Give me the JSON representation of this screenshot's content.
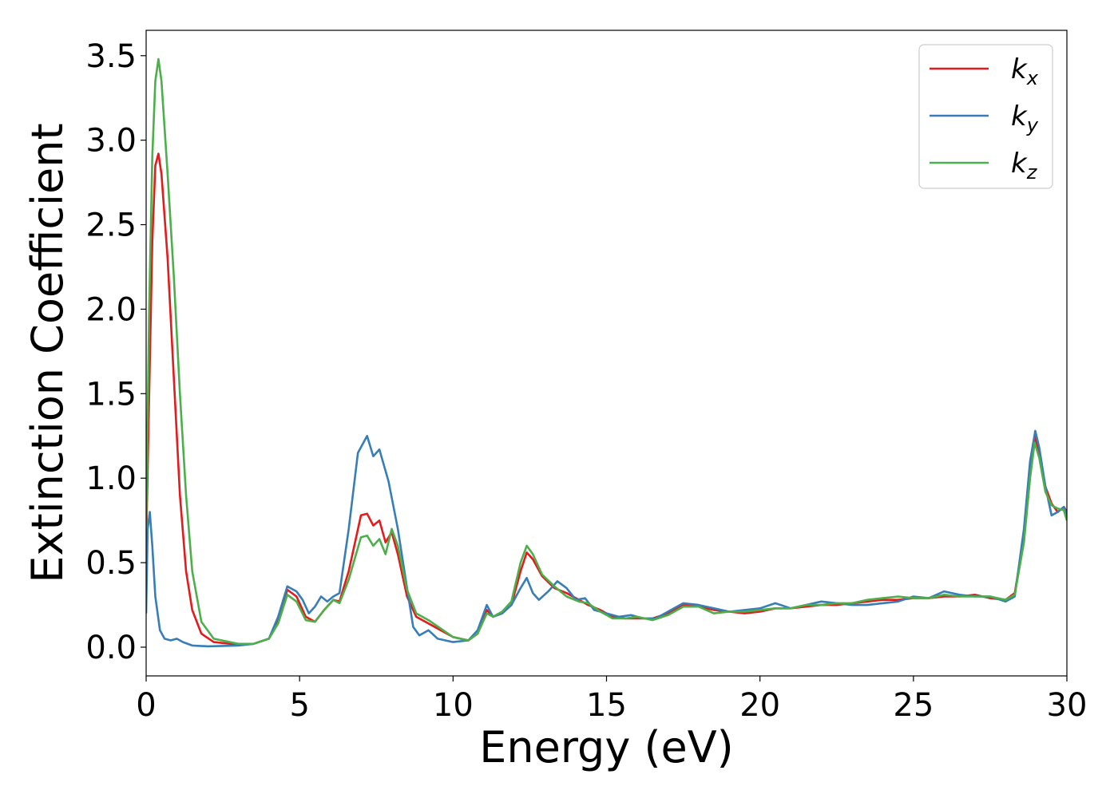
{
  "chart_data": {
    "type": "line",
    "xlabel": "Energy (eV)",
    "ylabel": "Extinction Coefficient",
    "xlim": [
      0,
      30
    ],
    "ylim": [
      -0.17,
      3.65
    ],
    "x_ticks": [
      0,
      5,
      10,
      15,
      20,
      25,
      30
    ],
    "x_tick_labels": [
      "0",
      "5",
      "10",
      "15",
      "20",
      "25",
      "30"
    ],
    "y_ticks": [
      0.0,
      0.5,
      1.0,
      1.5,
      2.0,
      2.5,
      3.0,
      3.5
    ],
    "y_tick_labels": [
      "0.0",
      "0.5",
      "1.0",
      "1.5",
      "2.0",
      "2.5",
      "3.0",
      "3.5"
    ],
    "grid": false,
    "legend_position": "top-right",
    "series": [
      {
        "name": "k_x",
        "label_base": "k",
        "label_sub": "x",
        "color": "#e41a1c",
        "points": [
          [
            0,
            0.6
          ],
          [
            0.1,
            1.5
          ],
          [
            0.2,
            2.4
          ],
          [
            0.3,
            2.85
          ],
          [
            0.4,
            2.92
          ],
          [
            0.5,
            2.8
          ],
          [
            0.7,
            2.3
          ],
          [
            0.9,
            1.6
          ],
          [
            1.1,
            0.9
          ],
          [
            1.3,
            0.45
          ],
          [
            1.5,
            0.22
          ],
          [
            1.8,
            0.08
          ],
          [
            2.2,
            0.03
          ],
          [
            3,
            0.015
          ],
          [
            3.5,
            0.02
          ],
          [
            4,
            0.05
          ],
          [
            4.3,
            0.15
          ],
          [
            4.6,
            0.34
          ],
          [
            4.9,
            0.3
          ],
          [
            5.2,
            0.18
          ],
          [
            5.5,
            0.15
          ],
          [
            5.8,
            0.22
          ],
          [
            6.1,
            0.28
          ],
          [
            6.3,
            0.27
          ],
          [
            6.6,
            0.45
          ],
          [
            7.0,
            0.78
          ],
          [
            7.2,
            0.79
          ],
          [
            7.4,
            0.72
          ],
          [
            7.6,
            0.75
          ],
          [
            7.8,
            0.62
          ],
          [
            8.0,
            0.68
          ],
          [
            8.2,
            0.55
          ],
          [
            8.5,
            0.3
          ],
          [
            8.8,
            0.18
          ],
          [
            9.2,
            0.14
          ],
          [
            9.6,
            0.1
          ],
          [
            10,
            0.06
          ],
          [
            10.5,
            0.04
          ],
          [
            10.8,
            0.08
          ],
          [
            11.1,
            0.22
          ],
          [
            11.3,
            0.18
          ],
          [
            11.6,
            0.2
          ],
          [
            11.9,
            0.25
          ],
          [
            12.2,
            0.45
          ],
          [
            12.4,
            0.56
          ],
          [
            12.6,
            0.52
          ],
          [
            12.9,
            0.42
          ],
          [
            13.3,
            0.35
          ],
          [
            13.7,
            0.32
          ],
          [
            14.1,
            0.28
          ],
          [
            14.4,
            0.25
          ],
          [
            14.8,
            0.22
          ],
          [
            15.2,
            0.18
          ],
          [
            15.6,
            0.17
          ],
          [
            16.0,
            0.17
          ],
          [
            16.5,
            0.17
          ],
          [
            17.0,
            0.2
          ],
          [
            17.5,
            0.25
          ],
          [
            18,
            0.24
          ],
          [
            18.5,
            0.22
          ],
          [
            19,
            0.21
          ],
          [
            19.5,
            0.2
          ],
          [
            20,
            0.21
          ],
          [
            20.5,
            0.23
          ],
          [
            21,
            0.23
          ],
          [
            21.5,
            0.24
          ],
          [
            22,
            0.25
          ],
          [
            22.5,
            0.25
          ],
          [
            23,
            0.26
          ],
          [
            23.5,
            0.27
          ],
          [
            24,
            0.28
          ],
          [
            24.5,
            0.28
          ],
          [
            25,
            0.29
          ],
          [
            25.5,
            0.29
          ],
          [
            26,
            0.3
          ],
          [
            26.5,
            0.3
          ],
          [
            27,
            0.31
          ],
          [
            27.5,
            0.29
          ],
          [
            28,
            0.28
          ],
          [
            28.3,
            0.32
          ],
          [
            28.6,
            0.65
          ],
          [
            28.8,
            1.05
          ],
          [
            28.95,
            1.25
          ],
          [
            29.1,
            1.15
          ],
          [
            29.3,
            0.95
          ],
          [
            29.5,
            0.85
          ],
          [
            29.7,
            0.8
          ],
          [
            29.9,
            0.83
          ],
          [
            30,
            0.8
          ]
        ]
      },
      {
        "name": "k_y",
        "label_base": "k",
        "label_sub": "y",
        "color": "#377eb8",
        "points": [
          [
            0,
            0.2
          ],
          [
            0.05,
            0.7
          ],
          [
            0.12,
            0.8
          ],
          [
            0.2,
            0.6
          ],
          [
            0.3,
            0.3
          ],
          [
            0.45,
            0.1
          ],
          [
            0.6,
            0.05
          ],
          [
            0.8,
            0.04
          ],
          [
            1.0,
            0.05
          ],
          [
            1.2,
            0.03
          ],
          [
            1.5,
            0.01
          ],
          [
            2,
            0.005
          ],
          [
            3,
            0.01
          ],
          [
            3.5,
            0.02
          ],
          [
            4,
            0.05
          ],
          [
            4.3,
            0.18
          ],
          [
            4.6,
            0.36
          ],
          [
            4.9,
            0.33
          ],
          [
            5.1,
            0.28
          ],
          [
            5.3,
            0.2
          ],
          [
            5.5,
            0.24
          ],
          [
            5.7,
            0.3
          ],
          [
            5.9,
            0.27
          ],
          [
            6.1,
            0.3
          ],
          [
            6.3,
            0.32
          ],
          [
            6.6,
            0.7
          ],
          [
            6.9,
            1.15
          ],
          [
            7.2,
            1.25
          ],
          [
            7.4,
            1.13
          ],
          [
            7.6,
            1.17
          ],
          [
            7.9,
            0.98
          ],
          [
            8.2,
            0.7
          ],
          [
            8.5,
            0.35
          ],
          [
            8.7,
            0.12
          ],
          [
            8.9,
            0.07
          ],
          [
            9.2,
            0.1
          ],
          [
            9.5,
            0.05
          ],
          [
            10,
            0.03
          ],
          [
            10.5,
            0.04
          ],
          [
            10.8,
            0.1
          ],
          [
            11.1,
            0.25
          ],
          [
            11.3,
            0.18
          ],
          [
            11.6,
            0.2
          ],
          [
            11.9,
            0.25
          ],
          [
            12.2,
            0.35
          ],
          [
            12.4,
            0.41
          ],
          [
            12.6,
            0.32
          ],
          [
            12.8,
            0.28
          ],
          [
            13.1,
            0.33
          ],
          [
            13.4,
            0.39
          ],
          [
            13.7,
            0.35
          ],
          [
            14.0,
            0.28
          ],
          [
            14.3,
            0.29
          ],
          [
            14.6,
            0.22
          ],
          [
            15.0,
            0.2
          ],
          [
            15.4,
            0.18
          ],
          [
            15.8,
            0.19
          ],
          [
            16.2,
            0.17
          ],
          [
            16.6,
            0.17
          ],
          [
            17.0,
            0.21
          ],
          [
            17.5,
            0.26
          ],
          [
            18,
            0.25
          ],
          [
            18.5,
            0.23
          ],
          [
            19,
            0.21
          ],
          [
            19.5,
            0.22
          ],
          [
            20,
            0.23
          ],
          [
            20.5,
            0.26
          ],
          [
            21,
            0.23
          ],
          [
            21.5,
            0.25
          ],
          [
            22,
            0.27
          ],
          [
            22.5,
            0.26
          ],
          [
            23,
            0.25
          ],
          [
            23.5,
            0.25
          ],
          [
            24,
            0.26
          ],
          [
            24.5,
            0.27
          ],
          [
            25,
            0.3
          ],
          [
            25.5,
            0.29
          ],
          [
            26,
            0.33
          ],
          [
            26.5,
            0.31
          ],
          [
            27,
            0.3
          ],
          [
            27.5,
            0.3
          ],
          [
            28,
            0.27
          ],
          [
            28.3,
            0.3
          ],
          [
            28.6,
            0.7
          ],
          [
            28.8,
            1.1
          ],
          [
            28.97,
            1.28
          ],
          [
            29.1,
            1.18
          ],
          [
            29.3,
            0.95
          ],
          [
            29.5,
            0.78
          ],
          [
            29.7,
            0.8
          ],
          [
            29.9,
            0.83
          ],
          [
            30,
            0.78
          ]
        ]
      },
      {
        "name": "k_z",
        "label_base": "k",
        "label_sub": "z",
        "color": "#4daf4a",
        "points": [
          [
            0,
            0.7
          ],
          [
            0.1,
            2.0
          ],
          [
            0.2,
            2.9
          ],
          [
            0.3,
            3.35
          ],
          [
            0.4,
            3.48
          ],
          [
            0.5,
            3.35
          ],
          [
            0.7,
            2.8
          ],
          [
            0.9,
            2.2
          ],
          [
            1.1,
            1.5
          ],
          [
            1.3,
            0.9
          ],
          [
            1.5,
            0.45
          ],
          [
            1.8,
            0.15
          ],
          [
            2.2,
            0.05
          ],
          [
            3,
            0.02
          ],
          [
            3.5,
            0.02
          ],
          [
            4,
            0.05
          ],
          [
            4.3,
            0.14
          ],
          [
            4.6,
            0.31
          ],
          [
            4.9,
            0.27
          ],
          [
            5.2,
            0.16
          ],
          [
            5.5,
            0.15
          ],
          [
            5.8,
            0.22
          ],
          [
            6.1,
            0.28
          ],
          [
            6.3,
            0.26
          ],
          [
            6.6,
            0.4
          ],
          [
            7.0,
            0.65
          ],
          [
            7.2,
            0.66
          ],
          [
            7.4,
            0.6
          ],
          [
            7.6,
            0.64
          ],
          [
            7.8,
            0.55
          ],
          [
            8.0,
            0.7
          ],
          [
            8.2,
            0.6
          ],
          [
            8.5,
            0.34
          ],
          [
            8.8,
            0.2
          ],
          [
            9.2,
            0.16
          ],
          [
            9.6,
            0.11
          ],
          [
            10,
            0.06
          ],
          [
            10.5,
            0.04
          ],
          [
            10.8,
            0.08
          ],
          [
            11.1,
            0.2
          ],
          [
            11.3,
            0.18
          ],
          [
            11.6,
            0.21
          ],
          [
            11.9,
            0.27
          ],
          [
            12.2,
            0.5
          ],
          [
            12.4,
            0.6
          ],
          [
            12.6,
            0.55
          ],
          [
            12.9,
            0.43
          ],
          [
            13.3,
            0.36
          ],
          [
            13.7,
            0.3
          ],
          [
            14.1,
            0.27
          ],
          [
            14.4,
            0.26
          ],
          [
            14.8,
            0.21
          ],
          [
            15.2,
            0.17
          ],
          [
            15.6,
            0.17
          ],
          [
            16.0,
            0.18
          ],
          [
            16.5,
            0.16
          ],
          [
            17.0,
            0.19
          ],
          [
            17.5,
            0.24
          ],
          [
            18,
            0.24
          ],
          [
            18.5,
            0.2
          ],
          [
            19,
            0.21
          ],
          [
            19.5,
            0.21
          ],
          [
            20,
            0.22
          ],
          [
            20.5,
            0.23
          ],
          [
            21,
            0.23
          ],
          [
            21.5,
            0.25
          ],
          [
            22,
            0.25
          ],
          [
            22.5,
            0.26
          ],
          [
            23,
            0.26
          ],
          [
            23.5,
            0.28
          ],
          [
            24,
            0.29
          ],
          [
            24.5,
            0.3
          ],
          [
            25,
            0.29
          ],
          [
            25.5,
            0.29
          ],
          [
            26,
            0.31
          ],
          [
            26.5,
            0.3
          ],
          [
            27,
            0.3
          ],
          [
            27.5,
            0.3
          ],
          [
            28,
            0.28
          ],
          [
            28.3,
            0.31
          ],
          [
            28.6,
            0.62
          ],
          [
            28.8,
            1.0
          ],
          [
            28.95,
            1.21
          ],
          [
            29.1,
            1.12
          ],
          [
            29.3,
            0.92
          ],
          [
            29.5,
            0.84
          ],
          [
            29.7,
            0.82
          ],
          [
            29.9,
            0.81
          ],
          [
            30,
            0.75
          ]
        ]
      }
    ]
  }
}
